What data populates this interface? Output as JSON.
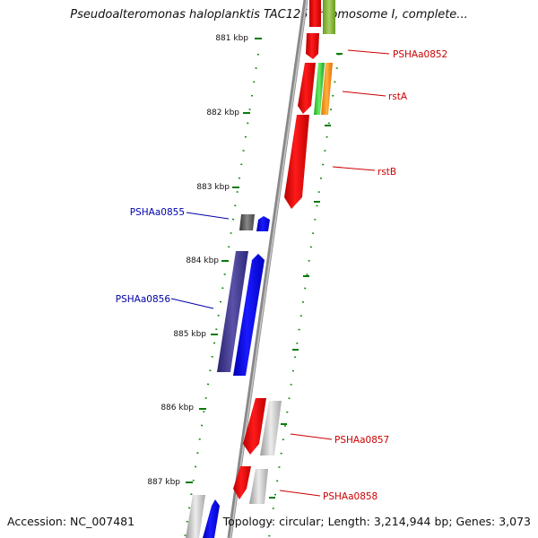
{
  "title": "Pseudoalteromonas haloplanktis TAC125 chromosome I, complete...",
  "footer": {
    "accession": "Accession: NC_007481",
    "topology": "Topology: circular; Length: 3,214,944 bp; Genes: 3,073"
  },
  "colors": {
    "label_red": "#cc0000",
    "label_blue": "#0000aa",
    "tick_green": "#007700",
    "axis_gray": "#8a8a8a"
  },
  "ticks": [
    "881 kbp",
    "882 kbp",
    "883 kbp",
    "884 kbp",
    "885 kbp",
    "886 kbp",
    "887 kbp"
  ],
  "gene_labels": {
    "PSHAa0852": "PSHAa0852",
    "rstA": "rstA",
    "rstB": "rstB",
    "PSHAa0855": "PSHAa0855",
    "PSHAa0856": "PSHAa0856",
    "PSHAa0857": "PSHAa0857",
    "PSHAa0858": "PSHAa0858"
  }
}
